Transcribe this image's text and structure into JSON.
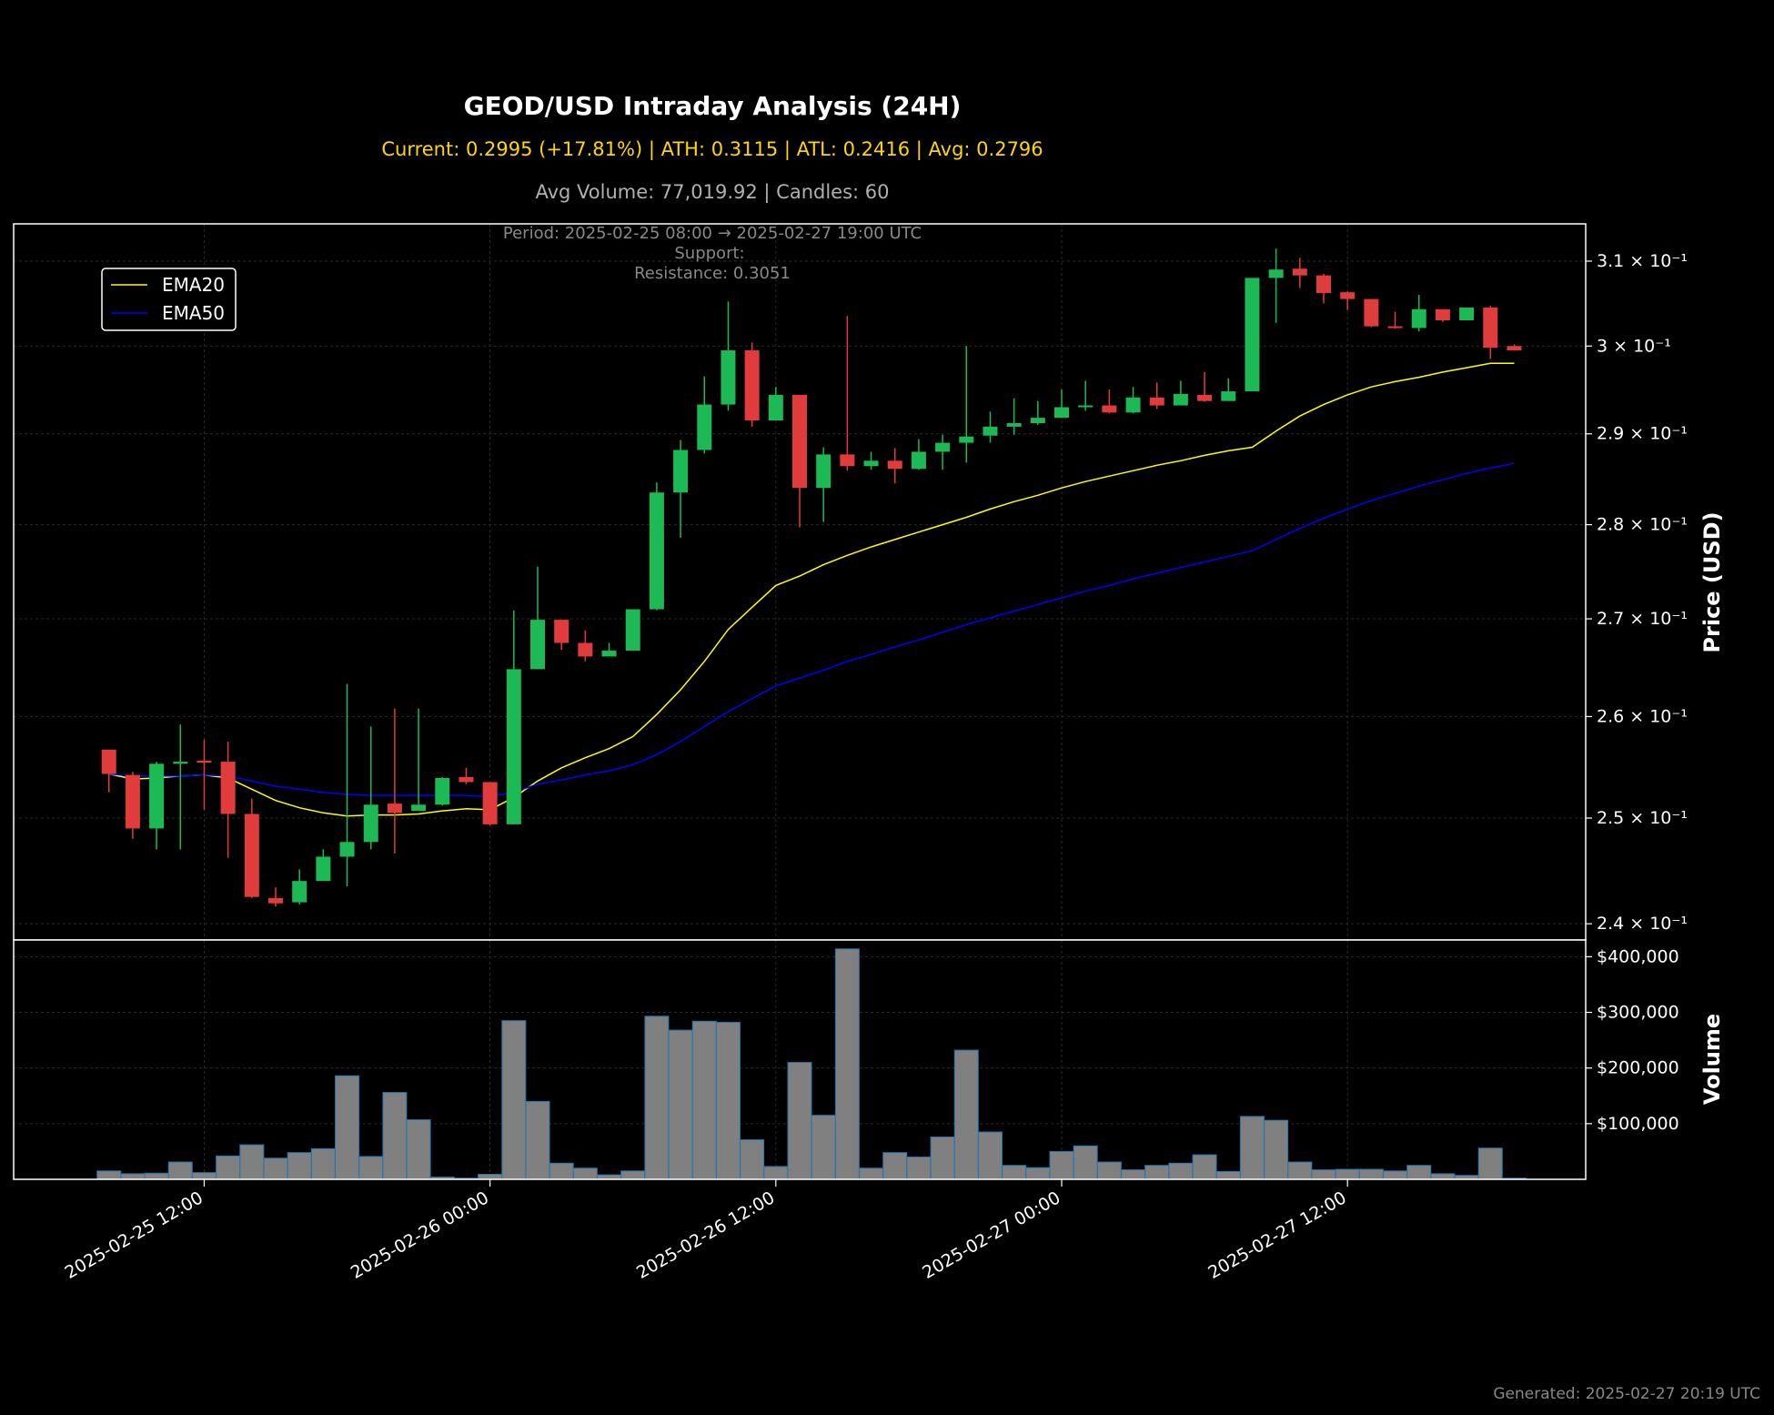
{
  "header": {
    "title": "GEOD/USD Intraday Analysis (24H)",
    "summary": "Current: 0.2995 (+17.81%) | ATH: 0.3115 | ATL: 0.2416 | Avg: 0.2796",
    "volume_summary": "Avg Volume: 77,019.92 | Candles: 60",
    "period": "Period: 2025-02-25 08:00 → 2025-02-27 19:00 UTC",
    "support": "Support:",
    "resistance": "Resistance: 0.3051"
  },
  "footer": {
    "generated": "Generated: 2025-02-27 20:19 UTC"
  },
  "colors": {
    "up": "#1db954",
    "down": "#e03c3c",
    "ema20": "#ffff00",
    "ema50": "#0000ff",
    "volume_bar": "#808080",
    "volume_edge": "#1f77b4",
    "summary": "#ffd700",
    "volume_summary": "#b0b0b0"
  },
  "chart_data": [
    {
      "type": "candlestick",
      "ylabel": "Price (USD)",
      "yscale": "log",
      "ylim": [
        0.2385,
        0.3145
      ],
      "yticks": [
        0.24,
        0.25,
        0.26,
        0.27,
        0.28,
        0.29,
        0.3,
        0.31
      ],
      "ytick_labels": [
        "2.4 × 10⁻¹",
        "2.5 × 10⁻¹",
        "2.6 × 10⁻¹",
        "2.7 × 10⁻¹",
        "2.8 × 10⁻¹",
        "2.9 × 10⁻¹",
        "3 × 10⁻¹",
        "3.1 × 10⁻¹"
      ],
      "xlim": [
        "2025-02-25 04:00",
        "2025-02-27 22:00"
      ],
      "grid": true,
      "legend_position": "top-left",
      "candles": [
        {
          "t": "2025-02-25 08:00",
          "o": 0.2567,
          "h": 0.2567,
          "l": 0.2525,
          "c": 0.2543
        },
        {
          "t": "2025-02-25 09:00",
          "o": 0.2542,
          "h": 0.2545,
          "l": 0.248,
          "c": 0.249
        },
        {
          "t": "2025-02-25 10:00",
          "o": 0.249,
          "h": 0.2555,
          "l": 0.247,
          "c": 0.2553
        },
        {
          "t": "2025-02-25 11:00",
          "o": 0.2553,
          "h": 0.2592,
          "l": 0.247,
          "c": 0.2555
        },
        {
          "t": "2025-02-25 12:00",
          "o": 0.2556,
          "h": 0.2577,
          "l": 0.2508,
          "c": 0.2554
        },
        {
          "t": "2025-02-25 13:00",
          "o": 0.2555,
          "h": 0.2575,
          "l": 0.2462,
          "c": 0.2504
        },
        {
          "t": "2025-02-25 14:00",
          "o": 0.2504,
          "h": 0.2519,
          "l": 0.2424,
          "c": 0.2425
        },
        {
          "t": "2025-02-25 15:00",
          "o": 0.2424,
          "h": 0.2434,
          "l": 0.2416,
          "c": 0.2419
        },
        {
          "t": "2025-02-25 16:00",
          "o": 0.242,
          "h": 0.2451,
          "l": 0.2418,
          "c": 0.244
        },
        {
          "t": "2025-02-25 17:00",
          "o": 0.244,
          "h": 0.247,
          "l": 0.244,
          "c": 0.2463
        },
        {
          "t": "2025-02-25 18:00",
          "o": 0.2463,
          "h": 0.2633,
          "l": 0.2435,
          "c": 0.2477
        },
        {
          "t": "2025-02-25 19:00",
          "o": 0.2477,
          "h": 0.259,
          "l": 0.247,
          "c": 0.2513
        },
        {
          "t": "2025-02-25 20:00",
          "o": 0.2514,
          "h": 0.2608,
          "l": 0.2466,
          "c": 0.2505
        },
        {
          "t": "2025-02-25 21:00",
          "o": 0.2507,
          "h": 0.2608,
          "l": 0.2507,
          "c": 0.2513
        },
        {
          "t": "2025-02-25 22:00",
          "o": 0.2513,
          "h": 0.254,
          "l": 0.2512,
          "c": 0.2539
        },
        {
          "t": "2025-02-25 23:00",
          "o": 0.254,
          "h": 0.2549,
          "l": 0.2533,
          "c": 0.2535
        },
        {
          "t": "2025-02-26 00:00",
          "o": 0.2535,
          "h": 0.2535,
          "l": 0.2493,
          "c": 0.2494
        },
        {
          "t": "2025-02-26 01:00",
          "o": 0.2494,
          "h": 0.2709,
          "l": 0.2494,
          "c": 0.2648
        },
        {
          "t": "2025-02-26 02:00",
          "o": 0.2648,
          "h": 0.2755,
          "l": 0.2648,
          "c": 0.2699
        },
        {
          "t": "2025-02-26 03:00",
          "o": 0.2699,
          "h": 0.2699,
          "l": 0.2668,
          "c": 0.2675
        },
        {
          "t": "2025-02-26 04:00",
          "o": 0.2675,
          "h": 0.2688,
          "l": 0.2656,
          "c": 0.2661
        },
        {
          "t": "2025-02-26 05:00",
          "o": 0.2661,
          "h": 0.2675,
          "l": 0.2661,
          "c": 0.2667
        },
        {
          "t": "2025-02-26 06:00",
          "o": 0.2667,
          "h": 0.271,
          "l": 0.2667,
          "c": 0.271
        },
        {
          "t": "2025-02-26 07:00",
          "o": 0.271,
          "h": 0.2846,
          "l": 0.2709,
          "c": 0.2835
        },
        {
          "t": "2025-02-26 08:00",
          "o": 0.2835,
          "h": 0.2893,
          "l": 0.2786,
          "c": 0.2882
        },
        {
          "t": "2025-02-26 09:00",
          "o": 0.2882,
          "h": 0.2965,
          "l": 0.2878,
          "c": 0.2933
        },
        {
          "t": "2025-02-26 10:00",
          "o": 0.2933,
          "h": 0.3052,
          "l": 0.2926,
          "c": 0.2995
        },
        {
          "t": "2025-02-26 11:00",
          "o": 0.2995,
          "h": 0.3004,
          "l": 0.2908,
          "c": 0.2915
        },
        {
          "t": "2025-02-26 12:00",
          "o": 0.2915,
          "h": 0.2953,
          "l": 0.2915,
          "c": 0.2944
        },
        {
          "t": "2025-02-26 13:00",
          "o": 0.2944,
          "h": 0.2944,
          "l": 0.2797,
          "c": 0.284
        },
        {
          "t": "2025-02-26 14:00",
          "o": 0.284,
          "h": 0.2885,
          "l": 0.2803,
          "c": 0.2877
        },
        {
          "t": "2025-02-26 15:00",
          "o": 0.2877,
          "h": 0.3035,
          "l": 0.2859,
          "c": 0.2864
        },
        {
          "t": "2025-02-26 16:00",
          "o": 0.2864,
          "h": 0.288,
          "l": 0.286,
          "c": 0.287
        },
        {
          "t": "2025-02-26 17:00",
          "o": 0.287,
          "h": 0.2884,
          "l": 0.2845,
          "c": 0.2861
        },
        {
          "t": "2025-02-26 18:00",
          "o": 0.2861,
          "h": 0.2894,
          "l": 0.286,
          "c": 0.288
        },
        {
          "t": "2025-02-26 19:00",
          "o": 0.288,
          "h": 0.2899,
          "l": 0.286,
          "c": 0.289
        },
        {
          "t": "2025-02-26 20:00",
          "o": 0.289,
          "h": 0.3,
          "l": 0.2868,
          "c": 0.2897
        },
        {
          "t": "2025-02-26 21:00",
          "o": 0.2898,
          "h": 0.2925,
          "l": 0.289,
          "c": 0.2908
        },
        {
          "t": "2025-02-26 22:00",
          "o": 0.2908,
          "h": 0.294,
          "l": 0.2899,
          "c": 0.2912
        },
        {
          "t": "2025-02-26 23:00",
          "o": 0.2912,
          "h": 0.2937,
          "l": 0.291,
          "c": 0.2918
        },
        {
          "t": "2025-02-27 00:00",
          "o": 0.2918,
          "h": 0.295,
          "l": 0.2918,
          "c": 0.293
        },
        {
          "t": "2025-02-27 01:00",
          "o": 0.293,
          "h": 0.296,
          "l": 0.2926,
          "c": 0.2932
        },
        {
          "t": "2025-02-27 02:00",
          "o": 0.2932,
          "h": 0.295,
          "l": 0.2923,
          "c": 0.2924
        },
        {
          "t": "2025-02-27 03:00",
          "o": 0.2924,
          "h": 0.2953,
          "l": 0.2923,
          "c": 0.2941
        },
        {
          "t": "2025-02-27 04:00",
          "o": 0.2941,
          "h": 0.2958,
          "l": 0.2928,
          "c": 0.2932
        },
        {
          "t": "2025-02-27 05:00",
          "o": 0.2932,
          "h": 0.296,
          "l": 0.2932,
          "c": 0.2945
        },
        {
          "t": "2025-02-27 06:00",
          "o": 0.2944,
          "h": 0.297,
          "l": 0.2936,
          "c": 0.2937
        },
        {
          "t": "2025-02-27 07:00",
          "o": 0.2937,
          "h": 0.2963,
          "l": 0.2937,
          "c": 0.2948
        },
        {
          "t": "2025-02-27 08:00",
          "o": 0.2948,
          "h": 0.308,
          "l": 0.2948,
          "c": 0.308
        },
        {
          "t": "2025-02-27 09:00",
          "o": 0.308,
          "h": 0.3115,
          "l": 0.3027,
          "c": 0.309
        },
        {
          "t": "2025-02-27 10:00",
          "o": 0.3091,
          "h": 0.3104,
          "l": 0.3068,
          "c": 0.3083
        },
        {
          "t": "2025-02-27 11:00",
          "o": 0.3083,
          "h": 0.3085,
          "l": 0.305,
          "c": 0.3062
        },
        {
          "t": "2025-02-27 12:00",
          "o": 0.3063,
          "h": 0.3064,
          "l": 0.3042,
          "c": 0.3055
        },
        {
          "t": "2025-02-27 13:00",
          "o": 0.3055,
          "h": 0.3055,
          "l": 0.3022,
          "c": 0.3023
        },
        {
          "t": "2025-02-27 14:00",
          "o": 0.3023,
          "h": 0.304,
          "l": 0.302,
          "c": 0.3021
        },
        {
          "t": "2025-02-27 15:00",
          "o": 0.3021,
          "h": 0.306,
          "l": 0.3017,
          "c": 0.3043
        },
        {
          "t": "2025-02-27 16:00",
          "o": 0.3043,
          "h": 0.3043,
          "l": 0.3028,
          "c": 0.303
        },
        {
          "t": "2025-02-27 17:00",
          "o": 0.303,
          "h": 0.3045,
          "l": 0.303,
          "c": 0.3045
        },
        {
          "t": "2025-02-27 18:00",
          "o": 0.3045,
          "h": 0.3047,
          "l": 0.2985,
          "c": 0.2998
        },
        {
          "t": "2025-02-27 19:00",
          "o": 0.3,
          "h": 0.3002,
          "l": 0.2995,
          "c": 0.2995
        }
      ],
      "series": [
        {
          "name": "EMA20",
          "values": [
            0.2543,
            0.2538,
            0.2539,
            0.2541,
            0.2542,
            0.2539,
            0.2528,
            0.2517,
            0.251,
            0.2505,
            0.2502,
            0.2503,
            0.2503,
            0.2504,
            0.2507,
            0.2509,
            0.2508,
            0.252,
            0.2536,
            0.2549,
            0.2559,
            0.2568,
            0.258,
            0.2602,
            0.2627,
            0.2656,
            0.2689,
            0.2712,
            0.2735,
            0.2745,
            0.2757,
            0.2767,
            0.2776,
            0.2784,
            0.2792,
            0.28,
            0.2808,
            0.2817,
            0.2825,
            0.2832,
            0.284,
            0.2847,
            0.2853,
            0.2859,
            0.2865,
            0.287,
            0.2876,
            0.2881,
            0.2885,
            0.2903,
            0.292,
            0.2933,
            0.2944,
            0.2953,
            0.2959,
            0.2964,
            0.297,
            0.2975,
            0.298,
            0.298
          ]
        },
        {
          "name": "EMA50",
          "values": [
            0.2543,
            0.2541,
            0.2541,
            0.2541,
            0.2542,
            0.2541,
            0.2536,
            0.2531,
            0.2528,
            0.2525,
            0.2523,
            0.2522,
            0.2522,
            0.2522,
            0.2522,
            0.2522,
            0.2521,
            0.2525,
            0.2533,
            0.2537,
            0.2542,
            0.2546,
            0.2552,
            0.2562,
            0.2575,
            0.259,
            0.2605,
            0.2618,
            0.2631,
            0.2639,
            0.2647,
            0.2656,
            0.2663,
            0.2671,
            0.2678,
            0.2686,
            0.2694,
            0.2701,
            0.2708,
            0.2715,
            0.2722,
            0.2729,
            0.2735,
            0.2742,
            0.2748,
            0.2754,
            0.276,
            0.2766,
            0.2772,
            0.2784,
            0.2796,
            0.2807,
            0.2817,
            0.2826,
            0.2834,
            0.2842,
            0.2849,
            0.2856,
            0.2862,
            0.2867
          ]
        }
      ]
    },
    {
      "type": "bar",
      "ylabel": "Volume",
      "ylim": [
        0,
        430000
      ],
      "yticks": [
        100000,
        200000,
        300000,
        400000
      ],
      "ytick_labels": [
        "$100,000",
        "$200,000",
        "$300,000",
        "$400,000"
      ],
      "xticks": [
        "2025-02-25 12:00",
        "2025-02-26 00:00",
        "2025-02-26 12:00",
        "2025-02-27 00:00",
        "2025-02-27 12:00"
      ],
      "grid": true,
      "values": [
        15000,
        10000,
        11000,
        31000,
        12000,
        42000,
        62000,
        38000,
        48000,
        55000,
        186000,
        41000,
        156000,
        107000,
        4000,
        2000,
        9000,
        285000,
        140000,
        29000,
        20000,
        8000,
        15000,
        293000,
        268000,
        284000,
        282000,
        71000,
        23000,
        210000,
        115000,
        414000,
        20000,
        48000,
        40000,
        76000,
        232000,
        85000,
        25000,
        21000,
        50000,
        60000,
        31000,
        17000,
        25000,
        29000,
        44000,
        14000,
        113000,
        106000,
        31000,
        17000,
        18000,
        18000,
        15000,
        25000,
        10000,
        7000,
        56000,
        2000
      ]
    }
  ]
}
